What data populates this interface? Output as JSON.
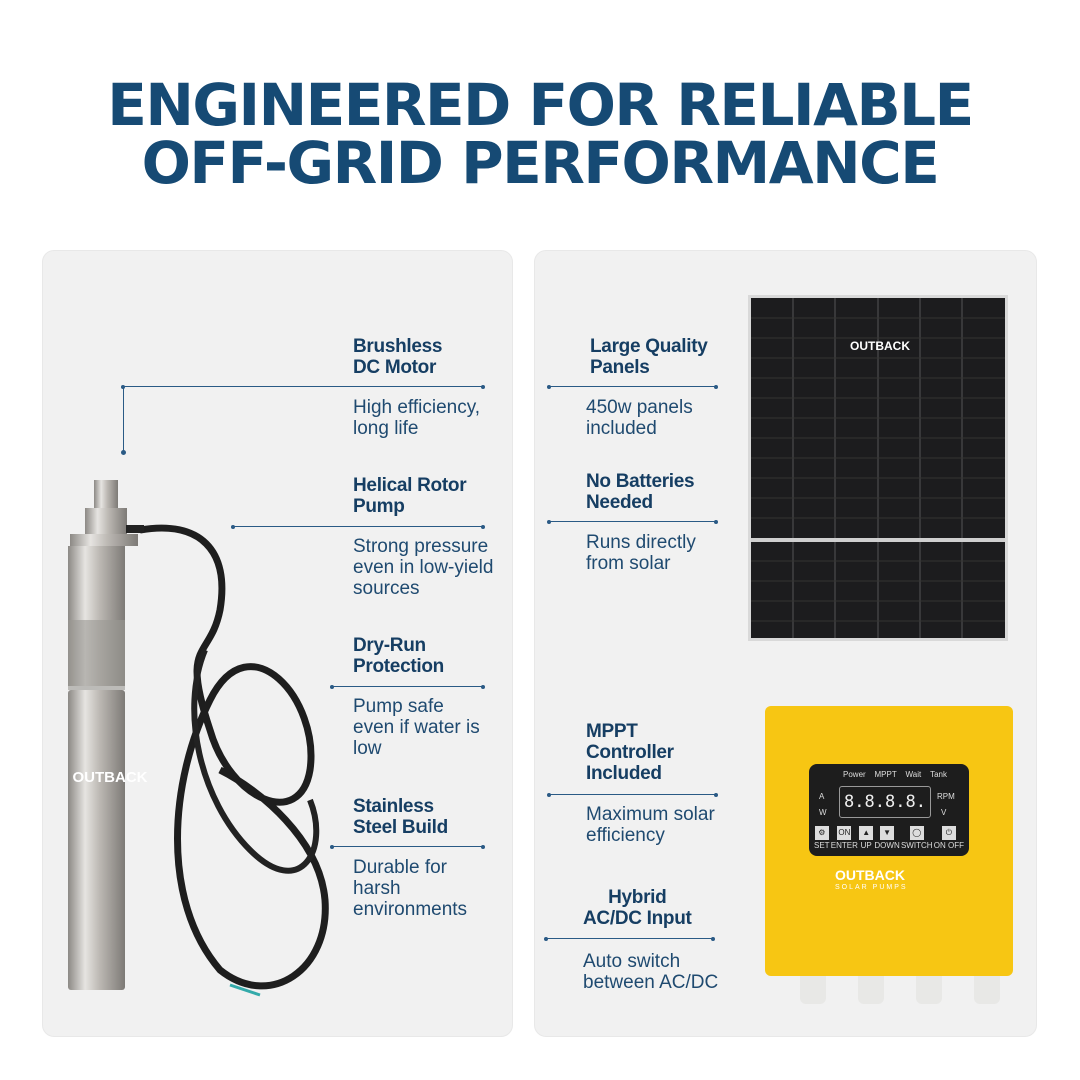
{
  "title": {
    "line1": "ENGINEERED FOR RELIABLE",
    "line2": "OFF-GRID PERFORMANCE"
  },
  "pump_features": [
    {
      "heading": [
        "Brushless",
        "DC Motor"
      ],
      "desc": [
        "High efficiency,",
        "long life"
      ]
    },
    {
      "heading": [
        "Helical Rotor",
        "Pump"
      ],
      "desc": [
        "Strong pressure",
        "even in low-yield",
        "sources"
      ]
    },
    {
      "heading": [
        "Dry-Run",
        "Protection"
      ],
      "desc": [
        "Pump safe",
        "even if water is",
        "low"
      ]
    },
    {
      "heading": [
        "Stainless",
        "Steel Build"
      ],
      "desc": [
        "Durable for",
        "harsh",
        "environments"
      ]
    }
  ],
  "system_features": [
    {
      "heading": [
        "Large Quality",
        "Panels"
      ],
      "desc": [
        "450w panels",
        "included"
      ]
    },
    {
      "heading": [
        "No Batteries",
        "Needed"
      ],
      "desc": [
        "Runs directly",
        "from solar"
      ]
    },
    {
      "heading": [
        "MPPT",
        "Controller",
        "Included"
      ],
      "desc": [
        "Maximum solar",
        "efficiency"
      ]
    },
    {
      "heading": [
        "Hybrid",
        "AC/DC Input"
      ],
      "desc": [
        "Auto switch",
        "between AC/DC"
      ]
    }
  ],
  "brand": {
    "name": "OUTBACK",
    "sub": "SOLAR PUMPS"
  },
  "controller": {
    "indicators": [
      "Power",
      "MPPT",
      "Wait",
      "Tank"
    ],
    "left_leds": [
      "A",
      "W"
    ],
    "right_leds": [
      "RPM",
      "V"
    ],
    "display": "8.8.8.8.",
    "buttons": [
      "SET",
      "ENTER",
      "UP",
      "DOWN",
      "SWITCH",
      "ON OFF"
    ],
    "button_glyphs": [
      "⚙",
      "ON",
      "▲",
      "▼",
      "◯",
      "⏻"
    ]
  },
  "colors": {
    "title": "#164a74",
    "text": "#163e63",
    "card": "#f1f1f1",
    "controller": "#f7c613",
    "panel": "#1c1c1e"
  }
}
